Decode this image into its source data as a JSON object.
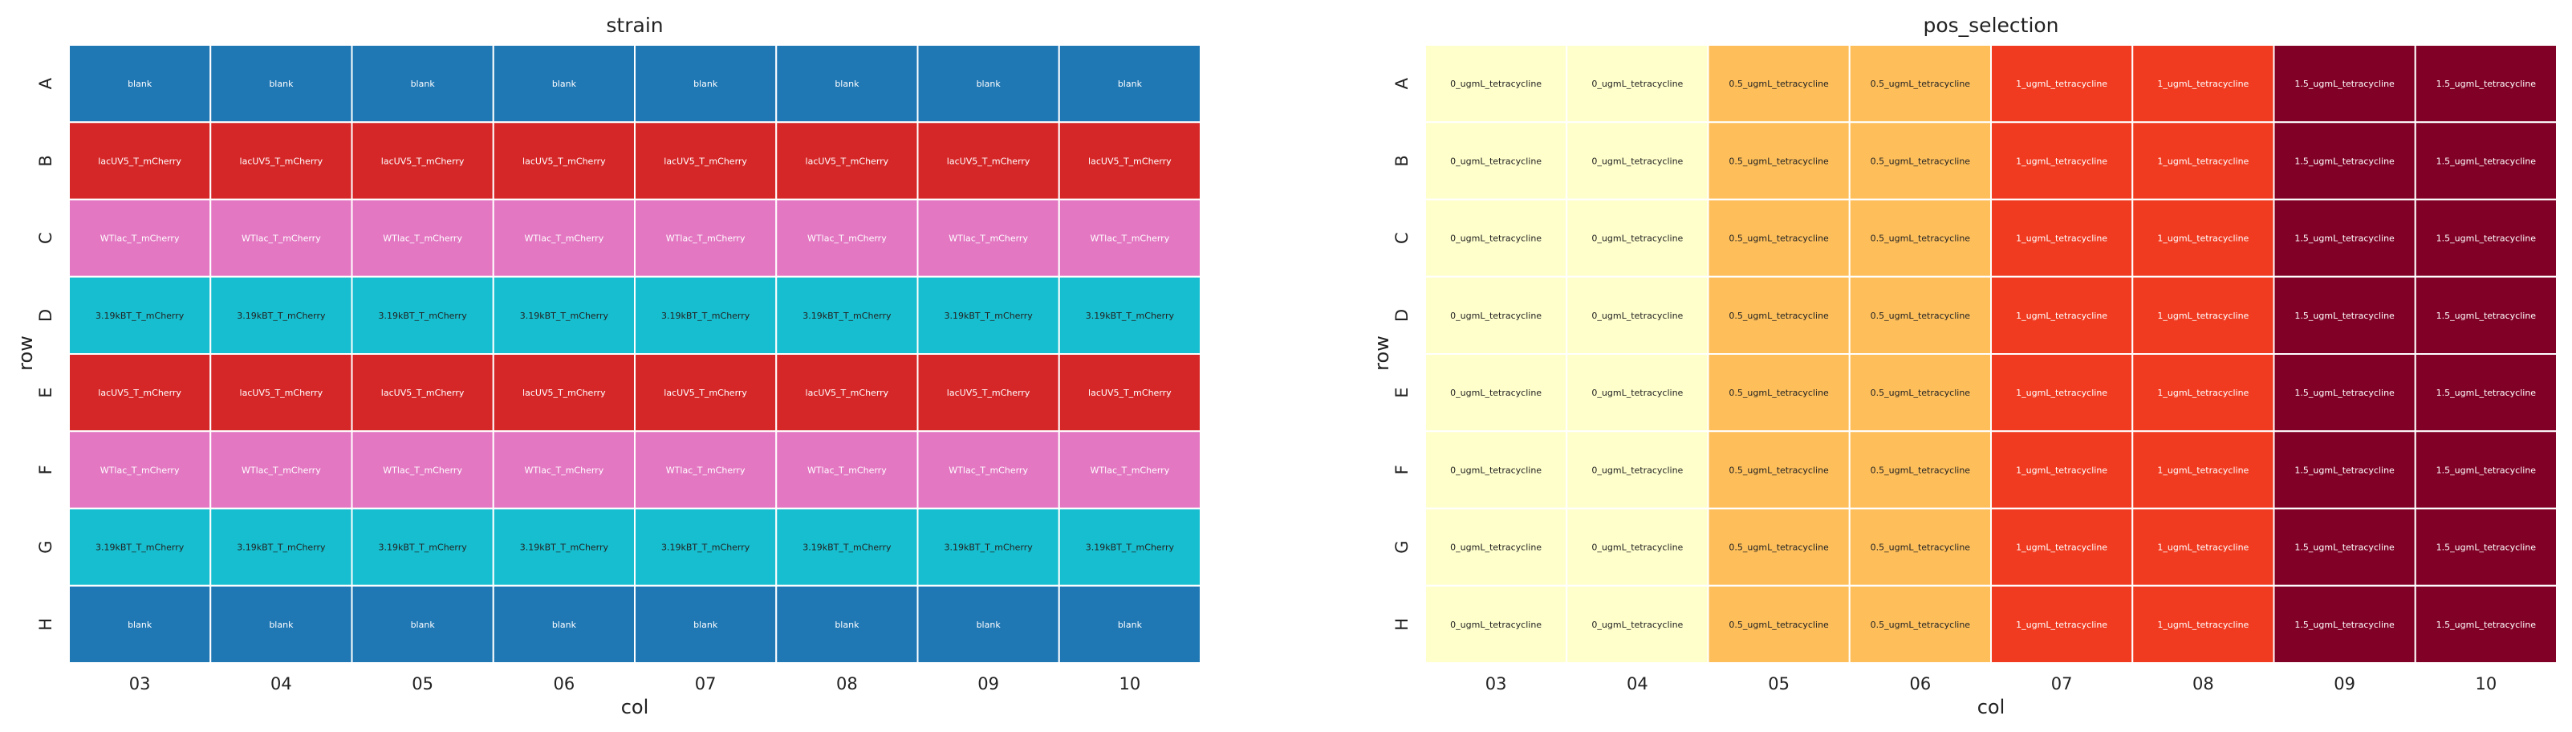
{
  "chart_data": [
    {
      "type": "heatmap",
      "title": "strain",
      "xlabel": "col",
      "ylabel": "row",
      "x_categories": [
        "03",
        "04",
        "05",
        "06",
        "07",
        "08",
        "09",
        "10"
      ],
      "y_categories": [
        "A",
        "B",
        "C",
        "D",
        "E",
        "F",
        "G",
        "H"
      ],
      "row_values": [
        "blank",
        "lacUV5_T_mCherry",
        "WTlac_T_mCherry",
        "3.19kBT_T_mCherry",
        "lacUV5_T_mCherry",
        "WTlac_T_mCherry",
        "3.19kBT_T_mCherry",
        "blank"
      ],
      "color_map": {
        "blank": "#1f77b4",
        "lacUV5_T_mCherry": "#d62728",
        "WTlac_T_mCherry": "#e377c2",
        "3.19kBT_T_mCherry": "#17becf"
      },
      "text_colors": {
        "blank": "#ffffff",
        "lacUV5_T_mCherry": "#ffffff",
        "WTlac_T_mCherry": "#ffffff",
        "3.19kBT_T_mCherry": "#222222"
      },
      "grid": true,
      "legend": "none"
    },
    {
      "type": "heatmap",
      "title": "pos_selection",
      "xlabel": "col",
      "ylabel": "row",
      "x_categories": [
        "03",
        "04",
        "05",
        "06",
        "07",
        "08",
        "09",
        "10"
      ],
      "y_categories": [
        "A",
        "B",
        "C",
        "D",
        "E",
        "F",
        "G",
        "H"
      ],
      "col_values": [
        "0_ugmL_tetracycline",
        "0_ugmL_tetracycline",
        "0.5_ugmL_tetracycline",
        "0.5_ugmL_tetracycline",
        "1_ugmL_tetracycline",
        "1_ugmL_tetracycline",
        "1.5_ugmL_tetracycline",
        "1.5_ugmL_tetracycline"
      ],
      "color_map": {
        "0_ugmL_tetracycline": "#ffffcc",
        "0.5_ugmL_tetracycline": "#febf5b",
        "1_ugmL_tetracycline": "#f03b20",
        "1.5_ugmL_tetracycline": "#800026"
      },
      "text_colors": {
        "0_ugmL_tetracycline": "#222222",
        "0.5_ugmL_tetracycline": "#222222",
        "1_ugmL_tetracycline": "#ffffff",
        "1.5_ugmL_tetracycline": "#ffffff"
      },
      "grid": true,
      "legend": "none"
    }
  ]
}
